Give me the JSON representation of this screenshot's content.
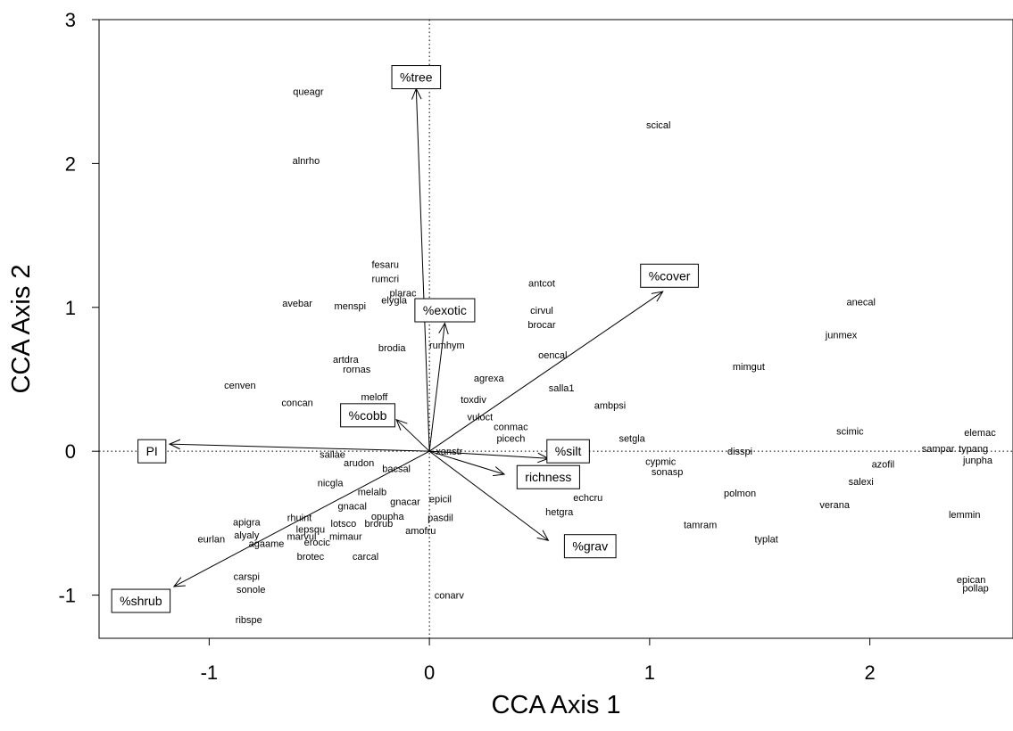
{
  "chart_data": {
    "type": "scatter",
    "title": "",
    "xlabel": "CCA Axis 1",
    "ylabel": "CCA Axis 2",
    "xlim": [
      -1.5,
      2.65
    ],
    "ylim": [
      -1.3,
      3.0
    ],
    "xticks": [
      -1,
      0,
      1,
      2
    ],
    "yticks": [
      -1,
      0,
      1,
      2,
      3
    ],
    "zero_lines": true,
    "species": [
      {
        "label": "queagr",
        "x": -0.55,
        "y": 2.5
      },
      {
        "label": "alnrho",
        "x": -0.56,
        "y": 2.02
      },
      {
        "label": "scical",
        "x": 1.04,
        "y": 2.27
      },
      {
        "label": "fesaru",
        "x": -0.2,
        "y": 1.3
      },
      {
        "label": "rumcri",
        "x": -0.2,
        "y": 1.2
      },
      {
        "label": "plarac",
        "x": -0.12,
        "y": 1.1
      },
      {
        "label": "elygla",
        "x": -0.16,
        "y": 1.05
      },
      {
        "label": "avebar",
        "x": -0.6,
        "y": 1.03
      },
      {
        "label": "menspi",
        "x": -0.36,
        "y": 1.01
      },
      {
        "label": "antcot",
        "x": 0.51,
        "y": 1.17
      },
      {
        "label": "cirvul",
        "x": 0.51,
        "y": 0.98
      },
      {
        "label": "brocar",
        "x": 0.51,
        "y": 0.88
      },
      {
        "label": "anecal",
        "x": 1.96,
        "y": 1.04
      },
      {
        "label": "junmex",
        "x": 1.87,
        "y": 0.81
      },
      {
        "label": "rumhym",
        "x": 0.08,
        "y": 0.74
      },
      {
        "label": "brodia",
        "x": -0.17,
        "y": 0.72
      },
      {
        "label": "oencal",
        "x": 0.56,
        "y": 0.67
      },
      {
        "label": "artdra",
        "x": -0.38,
        "y": 0.64
      },
      {
        "label": "rornas",
        "x": -0.33,
        "y": 0.57
      },
      {
        "label": "mimgut",
        "x": 1.45,
        "y": 0.59
      },
      {
        "label": "agrexa",
        "x": 0.27,
        "y": 0.51
      },
      {
        "label": "salla1",
        "x": 0.6,
        "y": 0.44
      },
      {
        "label": "cenven",
        "x": -0.86,
        "y": 0.46
      },
      {
        "label": "concan",
        "x": -0.6,
        "y": 0.34
      },
      {
        "label": "meloff",
        "x": -0.25,
        "y": 0.38
      },
      {
        "label": "toxdiv",
        "x": 0.2,
        "y": 0.36
      },
      {
        "label": "ambpsi",
        "x": 0.82,
        "y": 0.32
      },
      {
        "label": "vuloct",
        "x": 0.23,
        "y": 0.24
      },
      {
        "label": "conmac",
        "x": 0.37,
        "y": 0.17
      },
      {
        "label": "picech",
        "x": 0.37,
        "y": 0.09
      },
      {
        "label": "setgla",
        "x": 0.92,
        "y": 0.09
      },
      {
        "label": "scimic",
        "x": 1.91,
        "y": 0.14
      },
      {
        "label": "elemac",
        "x": 2.5,
        "y": 0.13
      },
      {
        "label": "xanstr",
        "x": 0.09,
        "y": 0.0
      },
      {
        "label": "sampar",
        "x": 2.31,
        "y": 0.02
      },
      {
        "label": "typang",
        "x": 2.47,
        "y": 0.02
      },
      {
        "label": "disspi",
        "x": 1.41,
        "y": 0.0
      },
      {
        "label": "junpha",
        "x": 2.49,
        "y": -0.06
      },
      {
        "label": "sallae",
        "x": -0.44,
        "y": -0.02
      },
      {
        "label": "arudon",
        "x": -0.32,
        "y": -0.08
      },
      {
        "label": "bacsal",
        "x": -0.15,
        "y": -0.12
      },
      {
        "label": "azofil",
        "x": 2.06,
        "y": -0.09
      },
      {
        "label": "cypmic",
        "x": 1.05,
        "y": -0.07
      },
      {
        "label": "sonasp",
        "x": 1.08,
        "y": -0.14
      },
      {
        "label": "salexi",
        "x": 1.96,
        "y": -0.21
      },
      {
        "label": "nicgla",
        "x": -0.45,
        "y": -0.22
      },
      {
        "label": "melalb",
        "x": -0.26,
        "y": -0.28
      },
      {
        "label": "gnacar",
        "x": -0.11,
        "y": -0.35
      },
      {
        "label": "epicil",
        "x": 0.05,
        "y": -0.33
      },
      {
        "label": "echcru",
        "x": 0.72,
        "y": -0.32
      },
      {
        "label": "polmon",
        "x": 1.41,
        "y": -0.29
      },
      {
        "label": "gnacal",
        "x": -0.35,
        "y": -0.38
      },
      {
        "label": "hetgra",
        "x": 0.59,
        "y": -0.42
      },
      {
        "label": "verana",
        "x": 1.84,
        "y": -0.37
      },
      {
        "label": "opupha",
        "x": -0.19,
        "y": -0.45
      },
      {
        "label": "apigra",
        "x": -0.83,
        "y": -0.49
      },
      {
        "label": "rhuint",
        "x": -0.59,
        "y": -0.46
      },
      {
        "label": "pasdil",
        "x": 0.05,
        "y": -0.46
      },
      {
        "label": "lemmin",
        "x": 2.43,
        "y": -0.44
      },
      {
        "label": "lotsco",
        "x": -0.39,
        "y": -0.5
      },
      {
        "label": "brorub",
        "x": -0.23,
        "y": -0.5
      },
      {
        "label": "tamram",
        "x": 1.23,
        "y": -0.51
      },
      {
        "label": "lepsqu",
        "x": -0.54,
        "y": -0.54
      },
      {
        "label": "amofru",
        "x": -0.04,
        "y": -0.55
      },
      {
        "label": "alyaly",
        "x": -0.83,
        "y": -0.58
      },
      {
        "label": "marvul",
        "x": -0.58,
        "y": -0.59
      },
      {
        "label": "mimaur",
        "x": -0.38,
        "y": -0.59
      },
      {
        "label": "typlat",
        "x": 1.53,
        "y": -0.61
      },
      {
        "label": "eurlan",
        "x": -0.99,
        "y": -0.61
      },
      {
        "label": "erocic",
        "x": -0.51,
        "y": -0.63
      },
      {
        "label": "agaame",
        "x": -0.74,
        "y": -0.64
      },
      {
        "label": "brotec",
        "x": -0.54,
        "y": -0.73
      },
      {
        "label": "carcal",
        "x": -0.29,
        "y": -0.73
      },
      {
        "label": "carspi",
        "x": -0.83,
        "y": -0.87
      },
      {
        "label": "sonole",
        "x": -0.81,
        "y": -0.96
      },
      {
        "label": "epican",
        "x": 2.46,
        "y": -0.89
      },
      {
        "label": "pollap",
        "x": 2.48,
        "y": -0.95
      },
      {
        "label": "conarv",
        "x": 0.09,
        "y": -1.0
      },
      {
        "label": "ribspe",
        "x": -0.82,
        "y": -1.17
      }
    ],
    "vectors": [
      {
        "label": "%tree",
        "x": -0.06,
        "y": 2.52,
        "lx": -0.06,
        "ly": 2.6
      },
      {
        "label": "%cover",
        "x": 1.06,
        "y": 1.11,
        "lx": 1.09,
        "ly": 1.22
      },
      {
        "label": "%exotic",
        "x": 0.07,
        "y": 0.89,
        "lx": 0.07,
        "ly": 0.98
      },
      {
        "label": "%cobb",
        "x": -0.15,
        "y": 0.22,
        "lx": -0.28,
        "ly": 0.25
      },
      {
        "label": "PI",
        "x": -1.18,
        "y": 0.05,
        "lx": -1.26,
        "ly": 0.0
      },
      {
        "label": "%silt",
        "x": 0.54,
        "y": -0.05,
        "lx": 0.63,
        "ly": 0.0
      },
      {
        "label": "richness",
        "x": 0.34,
        "y": -0.16,
        "lx": 0.54,
        "ly": -0.18
      },
      {
        "label": "%grav",
        "x": 0.54,
        "y": -0.62,
        "lx": 0.73,
        "ly": -0.66
      },
      {
        "label": "%shrub",
        "x": -1.16,
        "y": -0.94,
        "lx": -1.31,
        "ly": -1.04
      }
    ]
  }
}
